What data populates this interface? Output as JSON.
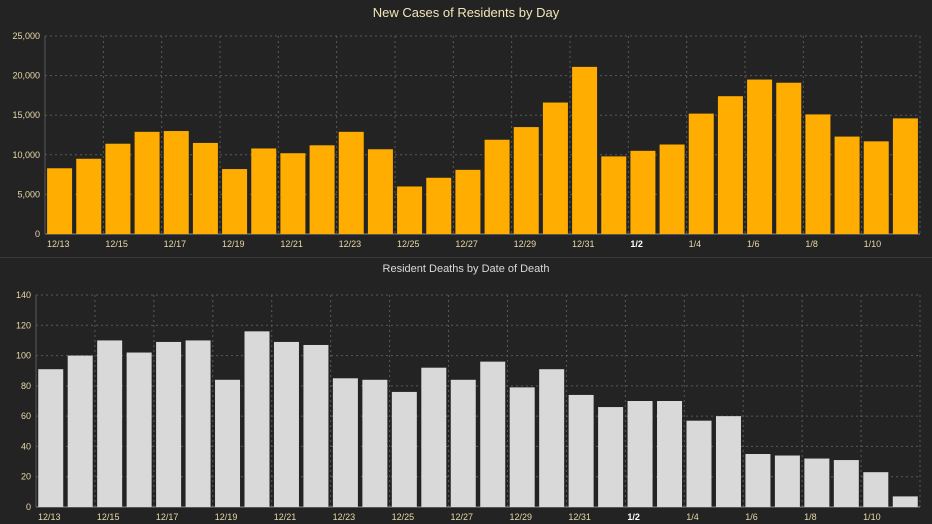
{
  "chart_data": [
    {
      "type": "bar",
      "title": "New Cases of Residents by Day",
      "categories": [
        "12/13",
        "12/14",
        "12/15",
        "12/16",
        "12/17",
        "12/18",
        "12/19",
        "12/20",
        "12/21",
        "12/22",
        "12/23",
        "12/24",
        "12/25",
        "12/26",
        "12/27",
        "12/28",
        "12/29",
        "12/30",
        "12/31",
        "1/1",
        "1/2",
        "1/3",
        "1/4",
        "1/5",
        "1/6",
        "1/7",
        "1/8",
        "1/9",
        "1/10",
        "1/11"
      ],
      "x_tick_labels": [
        "12/13",
        "12/15",
        "12/17",
        "12/19",
        "12/21",
        "12/23",
        "12/25",
        "12/27",
        "12/29",
        "12/31",
        "1/2",
        "1/4",
        "1/6",
        "1/8",
        "1/10"
      ],
      "bold_tick": "1/2",
      "values": [
        8300,
        9500,
        11400,
        12900,
        13000,
        11500,
        8200,
        10800,
        10200,
        11200,
        12900,
        10700,
        6000,
        7100,
        8100,
        11900,
        13500,
        16600,
        21100,
        9800,
        10500,
        11300,
        15200,
        17400,
        19500,
        19100,
        15100,
        12300,
        11700,
        14600
      ],
      "ylim": [
        0,
        25000
      ],
      "y_ticks": [
        0,
        5000,
        10000,
        15000,
        20000,
        25000
      ],
      "y_tick_labels": [
        "0",
        "5,000",
        "10,000",
        "15,000",
        "20,000",
        "25,000"
      ],
      "xlabel": "",
      "ylabel": "",
      "grid": true,
      "color": "#ffad00",
      "tick_color": "#e8d9a8"
    },
    {
      "type": "bar",
      "title": "Resident Deaths by Date of Death",
      "categories": [
        "12/13",
        "12/14",
        "12/15",
        "12/16",
        "12/17",
        "12/18",
        "12/19",
        "12/20",
        "12/21",
        "12/22",
        "12/23",
        "12/24",
        "12/25",
        "12/26",
        "12/27",
        "12/28",
        "12/29",
        "12/30",
        "12/31",
        "1/1",
        "1/2",
        "1/3",
        "1/4",
        "1/5",
        "1/6",
        "1/7",
        "1/8",
        "1/9",
        "1/10",
        "1/11"
      ],
      "x_tick_labels": [
        "12/13",
        "12/15",
        "12/17",
        "12/19",
        "12/21",
        "12/23",
        "12/25",
        "12/27",
        "12/29",
        "12/31",
        "1/2",
        "1/4",
        "1/6",
        "1/8",
        "1/10"
      ],
      "bold_tick": "1/2",
      "values": [
        91,
        100,
        110,
        102,
        109,
        110,
        84,
        116,
        109,
        107,
        85,
        84,
        76,
        92,
        84,
        96,
        79,
        91,
        74,
        66,
        70,
        70,
        57,
        60,
        35,
        34,
        32,
        31,
        23,
        7
      ],
      "ylim": [
        0,
        140
      ],
      "y_ticks": [
        0,
        20,
        40,
        60,
        80,
        100,
        120,
        140
      ],
      "y_tick_labels": [
        "0",
        "20",
        "40",
        "60",
        "80",
        "100",
        "120",
        "140"
      ],
      "xlabel": "",
      "ylabel": "",
      "grid": true,
      "color": "#d9d9d9",
      "tick_color": "#e8d9a8"
    }
  ]
}
